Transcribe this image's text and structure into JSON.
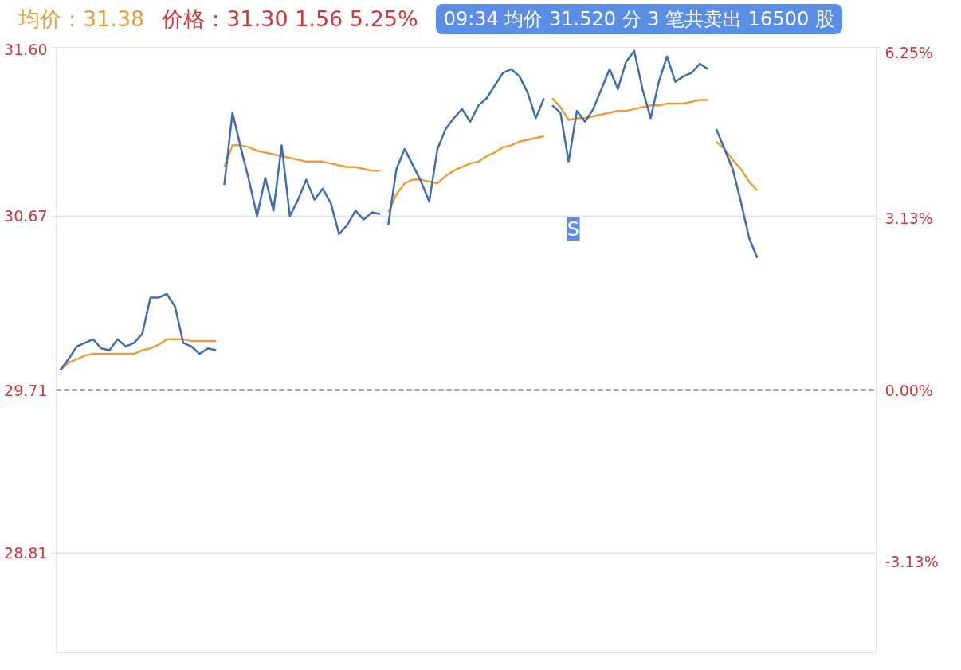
{
  "chart_data": {
    "type": "line",
    "categories": [
      null,
      null,
      null,
      null,
      null,
      null,
      null,
      null,
      null,
      null,
      null,
      null,
      null,
      null,
      null,
      null,
      null,
      null,
      null,
      null,
      null,
      null,
      null,
      null,
      null,
      null,
      null,
      null,
      null,
      null,
      null,
      null,
      null,
      null,
      null,
      null,
      null,
      null,
      null,
      null,
      null,
      null,
      null,
      null,
      null,
      null,
      null,
      null,
      null,
      null,
      null,
      null,
      null,
      null,
      null,
      null,
      null,
      null,
      null,
      null,
      null,
      null,
      null,
      null,
      null,
      null,
      null,
      null,
      null,
      null,
      null,
      null,
      null,
      null,
      null,
      null,
      null,
      null,
      null,
      null,
      null,
      null,
      null,
      null,
      null,
      null,
      null,
      null,
      null,
      null,
      null,
      null,
      null,
      null,
      null,
      null,
      null,
      null,
      null,
      null
    ],
    "series": [
      {
        "color": "#3d6eb4",
        "values": [
          29.82,
          29.88,
          29.95,
          29.97,
          29.99,
          29.94,
          29.93,
          29.99,
          29.95,
          29.97,
          30.02,
          30.22,
          30.22,
          30.24,
          30.17,
          29.97,
          29.95,
          29.91,
          29.94,
          29.93,
          null,
          null,
          null,
          null,
          null,
          null,
          null,
          null,
          null,
          null,
          null,
          null,
          null,
          null,
          null,
          null,
          null,
          null,
          null,
          null,
          null,
          null,
          null,
          null,
          null,
          null,
          null,
          null,
          null,
          null,
          null,
          null,
          null,
          null,
          null,
          null,
          null,
          null,
          null,
          null,
          null,
          null,
          null,
          null,
          null,
          null,
          null,
          null,
          null,
          null,
          null,
          null,
          null,
          null,
          null,
          null,
          null,
          null,
          null,
          null,
          null,
          null,
          null,
          null,
          null,
          null,
          null,
          null,
          null,
          null,
          null,
          null,
          null,
          null,
          null,
          null,
          null,
          null,
          null,
          null
        ]
      },
      {
        "color": "#e8a03c",
        "values": [
          29.82,
          29.86,
          29.88,
          29.9,
          29.91,
          29.91,
          29.91,
          29.91,
          29.91,
          29.91,
          29.93,
          29.94,
          29.96,
          29.99,
          29.99,
          29.99,
          29.98,
          29.98,
          29.98,
          29.98,
          null,
          null,
          null,
          null,
          null,
          null,
          null,
          null,
          null,
          null,
          null,
          null,
          null,
          null,
          null,
          null,
          null,
          null,
          null,
          null,
          null,
          null,
          null,
          null,
          null,
          null,
          null,
          null,
          null,
          null,
          null,
          null,
          null,
          null,
          null,
          null,
          null,
          null,
          null,
          null,
          null,
          null,
          null,
          null,
          null,
          null,
          null,
          null,
          null,
          null,
          null,
          null,
          null,
          null,
          null,
          null,
          null,
          null,
          null,
          null,
          null,
          null,
          null,
          null,
          null,
          null,
          null,
          null,
          null,
          null,
          null,
          null,
          null,
          null,
          null,
          null,
          null,
          null,
          null,
          null
        ]
      },
      {
        "color": "#3d6eb4",
        "values": [
          null,
          null,
          null,
          null,
          null,
          null,
          null,
          null,
          null,
          null,
          null,
          null,
          null,
          null,
          null,
          null,
          null,
          null,
          null,
          null,
          30.84,
          31.24,
          31.05,
          30.87,
          30.67,
          30.88,
          30.7,
          31.06,
          30.67,
          30.76,
          30.87,
          30.76,
          30.82,
          30.74,
          30.57,
          30.62,
          30.7,
          30.65,
          30.69,
          30.68,
          null,
          null,
          null,
          null,
          null,
          null,
          null,
          null,
          null,
          null,
          null,
          null,
          null,
          null,
          null,
          null,
          null,
          null,
          null,
          null,
          null,
          null,
          null,
          null,
          null,
          null,
          null,
          null,
          null,
          null,
          null,
          null,
          null,
          null,
          null,
          null,
          null,
          null,
          null,
          null,
          null,
          null,
          null,
          null,
          null,
          null,
          null,
          null,
          null,
          null,
          null,
          null,
          null,
          null,
          null,
          null,
          null,
          null,
          null,
          null
        ]
      },
      {
        "color": "#e8a03c",
        "values": [
          null,
          null,
          null,
          null,
          null,
          null,
          null,
          null,
          null,
          null,
          null,
          null,
          null,
          null,
          null,
          null,
          null,
          null,
          null,
          null,
          30.94,
          31.06,
          31.06,
          31.05,
          31.03,
          31.02,
          31.01,
          31.0,
          30.99,
          30.98,
          30.97,
          30.97,
          30.97,
          30.96,
          30.95,
          30.94,
          30.94,
          30.93,
          30.92,
          30.92,
          null,
          null,
          null,
          null,
          null,
          null,
          null,
          null,
          null,
          null,
          null,
          null,
          null,
          null,
          null,
          null,
          null,
          null,
          null,
          null,
          null,
          null,
          null,
          null,
          null,
          null,
          null,
          null,
          null,
          null,
          null,
          null,
          null,
          null,
          null,
          null,
          null,
          null,
          null,
          null,
          null,
          null,
          null,
          null,
          null,
          null,
          null,
          null,
          null,
          null,
          null,
          null,
          null,
          null,
          null,
          null,
          null,
          null,
          null,
          null
        ]
      },
      {
        "color": "#3d6eb4",
        "values": [
          null,
          null,
          null,
          null,
          null,
          null,
          null,
          null,
          null,
          null,
          null,
          null,
          null,
          null,
          null,
          null,
          null,
          null,
          null,
          null,
          null,
          null,
          null,
          null,
          null,
          null,
          null,
          null,
          null,
          null,
          null,
          null,
          null,
          null,
          null,
          null,
          null,
          null,
          null,
          null,
          30.62,
          30.93,
          31.04,
          30.95,
          30.86,
          30.75,
          31.04,
          31.15,
          31.21,
          31.26,
          31.19,
          31.28,
          31.32,
          31.39,
          31.46,
          31.48,
          31.44,
          31.35,
          31.21,
          31.32,
          null,
          null,
          null,
          null,
          null,
          null,
          null,
          null,
          null,
          null,
          null,
          null,
          null,
          null,
          null,
          null,
          null,
          null,
          null,
          null,
          null,
          null,
          null,
          null,
          null,
          null,
          null,
          null,
          null,
          null,
          null,
          null,
          null,
          null,
          null,
          null,
          null,
          null,
          null,
          null
        ]
      },
      {
        "color": "#e8a03c",
        "values": [
          null,
          null,
          null,
          null,
          null,
          null,
          null,
          null,
          null,
          null,
          null,
          null,
          null,
          null,
          null,
          null,
          null,
          null,
          null,
          null,
          null,
          null,
          null,
          null,
          null,
          null,
          null,
          null,
          null,
          null,
          null,
          null,
          null,
          null,
          null,
          null,
          null,
          null,
          null,
          null,
          30.69,
          30.79,
          30.85,
          30.87,
          30.87,
          30.86,
          30.85,
          30.89,
          30.92,
          30.94,
          30.96,
          30.97,
          31.0,
          31.02,
          31.05,
          31.06,
          31.08,
          31.09,
          31.1,
          31.11,
          null,
          null,
          null,
          null,
          null,
          null,
          null,
          null,
          null,
          null,
          null,
          null,
          null,
          null,
          null,
          null,
          null,
          null,
          null,
          null,
          null,
          null,
          null,
          null,
          null,
          null,
          null,
          null,
          null,
          null,
          null,
          null,
          null,
          null,
          null,
          null,
          null,
          null,
          null,
          null
        ]
      },
      {
        "color": "#3d6eb4",
        "values": [
          null,
          null,
          null,
          null,
          null,
          null,
          null,
          null,
          null,
          null,
          null,
          null,
          null,
          null,
          null,
          null,
          null,
          null,
          null,
          null,
          null,
          null,
          null,
          null,
          null,
          null,
          null,
          null,
          null,
          null,
          null,
          null,
          null,
          null,
          null,
          null,
          null,
          null,
          null,
          null,
          null,
          null,
          null,
          null,
          null,
          null,
          null,
          null,
          null,
          null,
          null,
          null,
          null,
          null,
          null,
          null,
          null,
          null,
          null,
          null,
          31.28,
          31.24,
          30.97,
          31.25,
          31.19,
          31.26,
          31.37,
          31.48,
          31.37,
          31.52,
          31.58,
          31.37,
          31.21,
          31.41,
          31.55,
          31.41,
          31.44,
          31.46,
          31.51,
          31.48,
          null,
          null,
          null,
          null,
          null,
          null,
          null,
          null,
          null,
          null,
          null,
          null,
          null,
          null,
          null,
          null,
          null,
          null,
          null,
          null
        ]
      },
      {
        "color": "#e8a03c",
        "values": [
          null,
          null,
          null,
          null,
          null,
          null,
          null,
          null,
          null,
          null,
          null,
          null,
          null,
          null,
          null,
          null,
          null,
          null,
          null,
          null,
          null,
          null,
          null,
          null,
          null,
          null,
          null,
          null,
          null,
          null,
          null,
          null,
          null,
          null,
          null,
          null,
          null,
          null,
          null,
          null,
          null,
          null,
          null,
          null,
          null,
          null,
          null,
          null,
          null,
          null,
          null,
          null,
          null,
          null,
          null,
          null,
          null,
          null,
          null,
          null,
          31.32,
          31.27,
          31.2,
          31.21,
          31.21,
          31.22,
          31.23,
          31.24,
          31.25,
          31.25,
          31.26,
          31.27,
          31.28,
          31.28,
          31.29,
          31.29,
          31.29,
          31.3,
          31.31,
          31.31,
          null,
          null,
          null,
          null,
          null,
          null,
          null,
          null,
          null,
          null,
          null,
          null,
          null,
          null,
          null,
          null,
          null,
          null,
          null,
          null
        ]
      },
      {
        "color": "#3d6eb4",
        "values": [
          null,
          null,
          null,
          null,
          null,
          null,
          null,
          null,
          null,
          null,
          null,
          null,
          null,
          null,
          null,
          null,
          null,
          null,
          null,
          null,
          null,
          null,
          null,
          null,
          null,
          null,
          null,
          null,
          null,
          null,
          null,
          null,
          null,
          null,
          null,
          null,
          null,
          null,
          null,
          null,
          null,
          null,
          null,
          null,
          null,
          null,
          null,
          null,
          null,
          null,
          null,
          null,
          null,
          null,
          null,
          null,
          null,
          null,
          null,
          null,
          null,
          null,
          null,
          null,
          null,
          null,
          null,
          null,
          null,
          null,
          null,
          null,
          null,
          null,
          null,
          null,
          null,
          null,
          null,
          null,
          31.15,
          31.04,
          30.93,
          30.75,
          30.55,
          30.44,
          null,
          null,
          null,
          null,
          null,
          null,
          null,
          null,
          null,
          null,
          null,
          null,
          null,
          null
        ]
      },
      {
        "color": "#e8a03c",
        "values": [
          null,
          null,
          null,
          null,
          null,
          null,
          null,
          null,
          null,
          null,
          null,
          null,
          null,
          null,
          null,
          null,
          null,
          null,
          null,
          null,
          null,
          null,
          null,
          null,
          null,
          null,
          null,
          null,
          null,
          null,
          null,
          null,
          null,
          null,
          null,
          null,
          null,
          null,
          null,
          null,
          null,
          null,
          null,
          null,
          null,
          null,
          null,
          null,
          null,
          null,
          null,
          null,
          null,
          null,
          null,
          null,
          null,
          null,
          null,
          null,
          null,
          null,
          null,
          null,
          null,
          null,
          null,
          null,
          null,
          null,
          null,
          null,
          null,
          null,
          null,
          null,
          null,
          null,
          null,
          null,
          31.08,
          31.04,
          30.98,
          30.93,
          30.86,
          30.81,
          null,
          null,
          null,
          null,
          null,
          null,
          null,
          null,
          null,
          null,
          null,
          null,
          null,
          null
        ]
      }
    ],
    "ylim": [
      28.26,
      31.6
    ],
    "yticks": [
      {
        "value": 31.6,
        "label": "31.60"
      },
      {
        "value": 30.67,
        "label": "30.67"
      },
      {
        "value": 29.71,
        "label": "29.71"
      },
      {
        "value": 28.81,
        "label": "28.81"
      }
    ],
    "y2lim": [
      -4.79,
      6.25
    ],
    "y2ticks": [
      {
        "value": 6.25,
        "label": "6.25%"
      },
      {
        "value": 3.13,
        "label": "3.13%"
      },
      {
        "value": 0,
        "label": "0.00%"
      },
      {
        "value": -3.13,
        "label": "-3.13%"
      }
    ],
    "grid": "y",
    "line_style": "solid",
    "ref_lines": [
      {
        "axis": "y",
        "value": 29.71,
        "color": "#666666",
        "line_style": "dashed"
      }
    ],
    "annotations": [
      "均价：31.38",
      "价格：31.30  1.56  5.25%",
      "09:34 均价 31.520  分 3 笔共卖出 16500 股",
      "S"
    ]
  }
}
